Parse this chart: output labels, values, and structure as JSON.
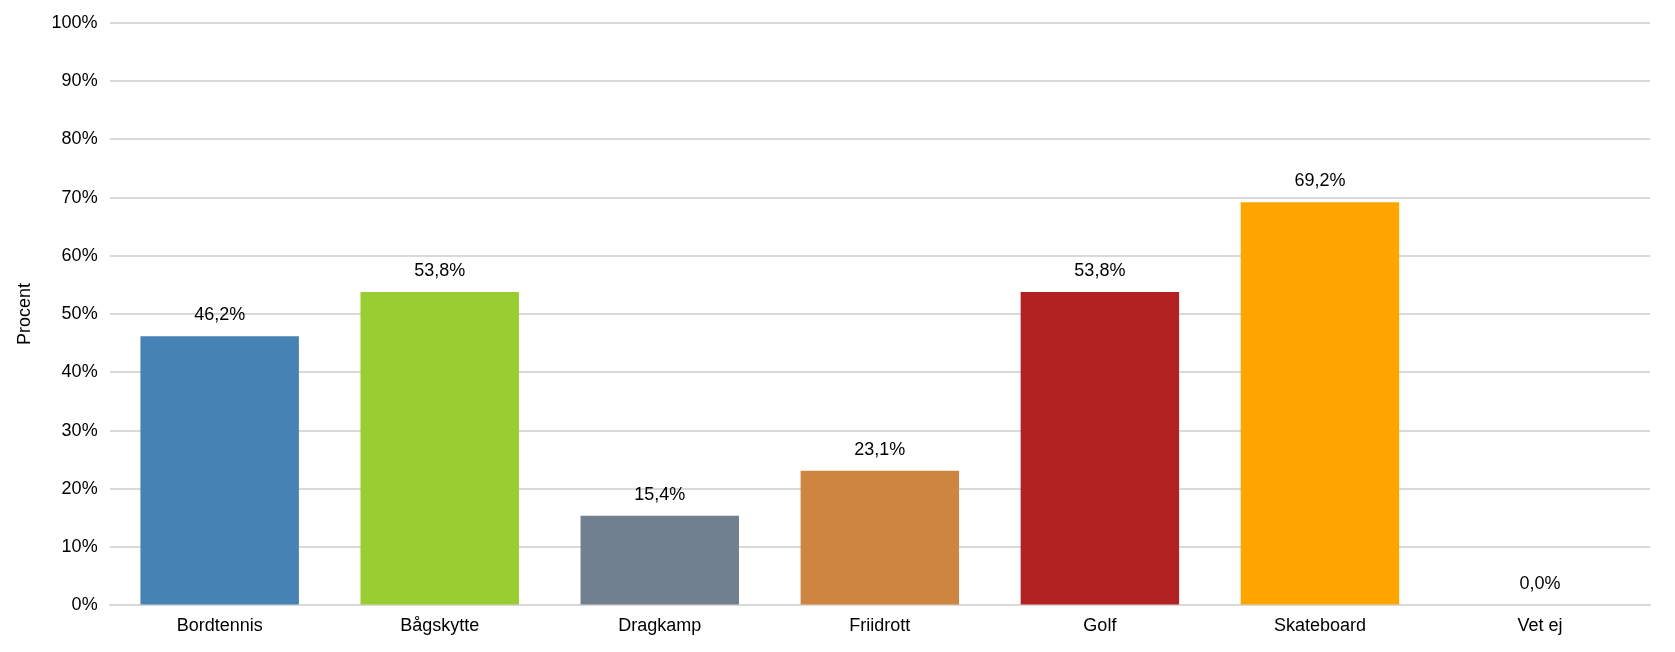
{
  "chart_data": {
    "type": "bar",
    "ylabel": "Procent",
    "categories": [
      "Bordtennis",
      "Bågskytte",
      "Dragkamp",
      "Friidrott",
      "Golf",
      "Skateboard",
      "Vet ej"
    ],
    "values": [
      46.2,
      53.8,
      15.4,
      23.1,
      53.8,
      69.2,
      0.0
    ],
    "colors": [
      "#4682b4",
      "#9acd32",
      "#708090",
      "#cd853f",
      "#b22222",
      "#ffa500",
      "#808080"
    ],
    "value_labels": [
      "46,2%",
      "53,8%",
      "15,4%",
      "23,1%",
      "53,8%",
      "69,2%",
      "0,0%"
    ],
    "ylim": [
      0,
      100
    ],
    "yticks": [
      {
        "value": 0,
        "label": "0%"
      },
      {
        "value": 10,
        "label": "10%"
      },
      {
        "value": 20,
        "label": "20%"
      },
      {
        "value": 30,
        "label": "30%"
      },
      {
        "value": 40,
        "label": "40%"
      },
      {
        "value": 50,
        "label": "50%"
      },
      {
        "value": 60,
        "label": "60%"
      },
      {
        "value": 70,
        "label": "70%"
      },
      {
        "value": 80,
        "label": "80%"
      },
      {
        "value": 90,
        "label": "90%"
      },
      {
        "value": 100,
        "label": "100%"
      }
    ],
    "grid": "y",
    "legend": false
  }
}
